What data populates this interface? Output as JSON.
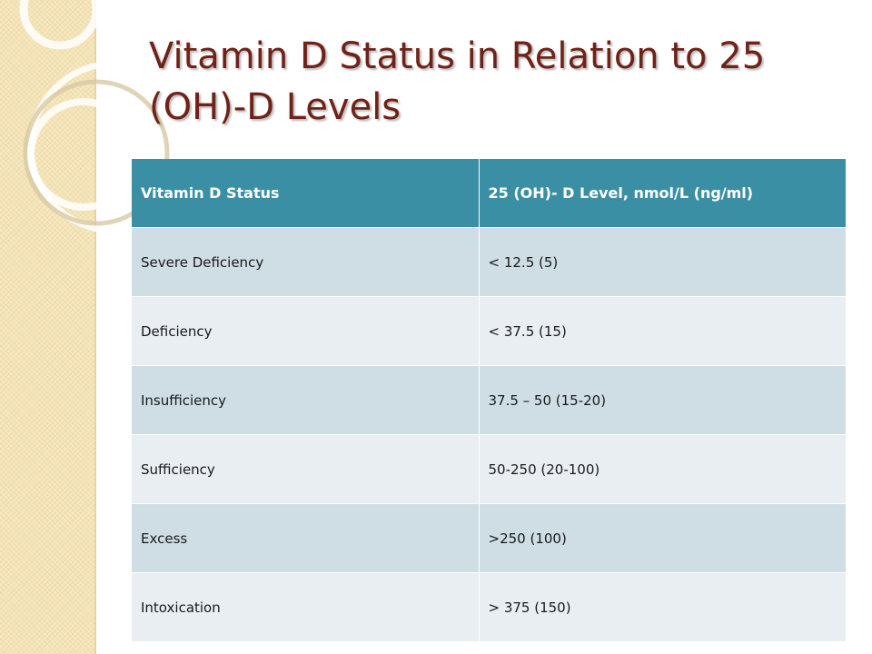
{
  "slide": {
    "title": "Vitamin D Status in Relation to 25 (OH)-D Levels"
  },
  "table": {
    "headers": [
      "Vitamin D Status",
      "25 (OH)- D Level, nmol/L (ng/ml)"
    ],
    "rows": [
      [
        "Severe Deficiency",
        "< 12.5 (5)"
      ],
      [
        "Deficiency",
        "< 37.5 (15)"
      ],
      [
        "Insufficiency",
        "37.5 – 50  (15-20)"
      ],
      [
        "Sufficiency",
        "50-250    (20-100)"
      ],
      [
        "Excess",
        ">250  (100)"
      ],
      [
        "Intoxication",
        "> 375 (150)"
      ]
    ]
  },
  "theme": {
    "title_color": "#6f2218",
    "header_color": "#3b8fa5",
    "row_odd_color": "#cfdde4",
    "row_even_color": "#e8eef2",
    "strip_color": "#f6e7bd"
  }
}
